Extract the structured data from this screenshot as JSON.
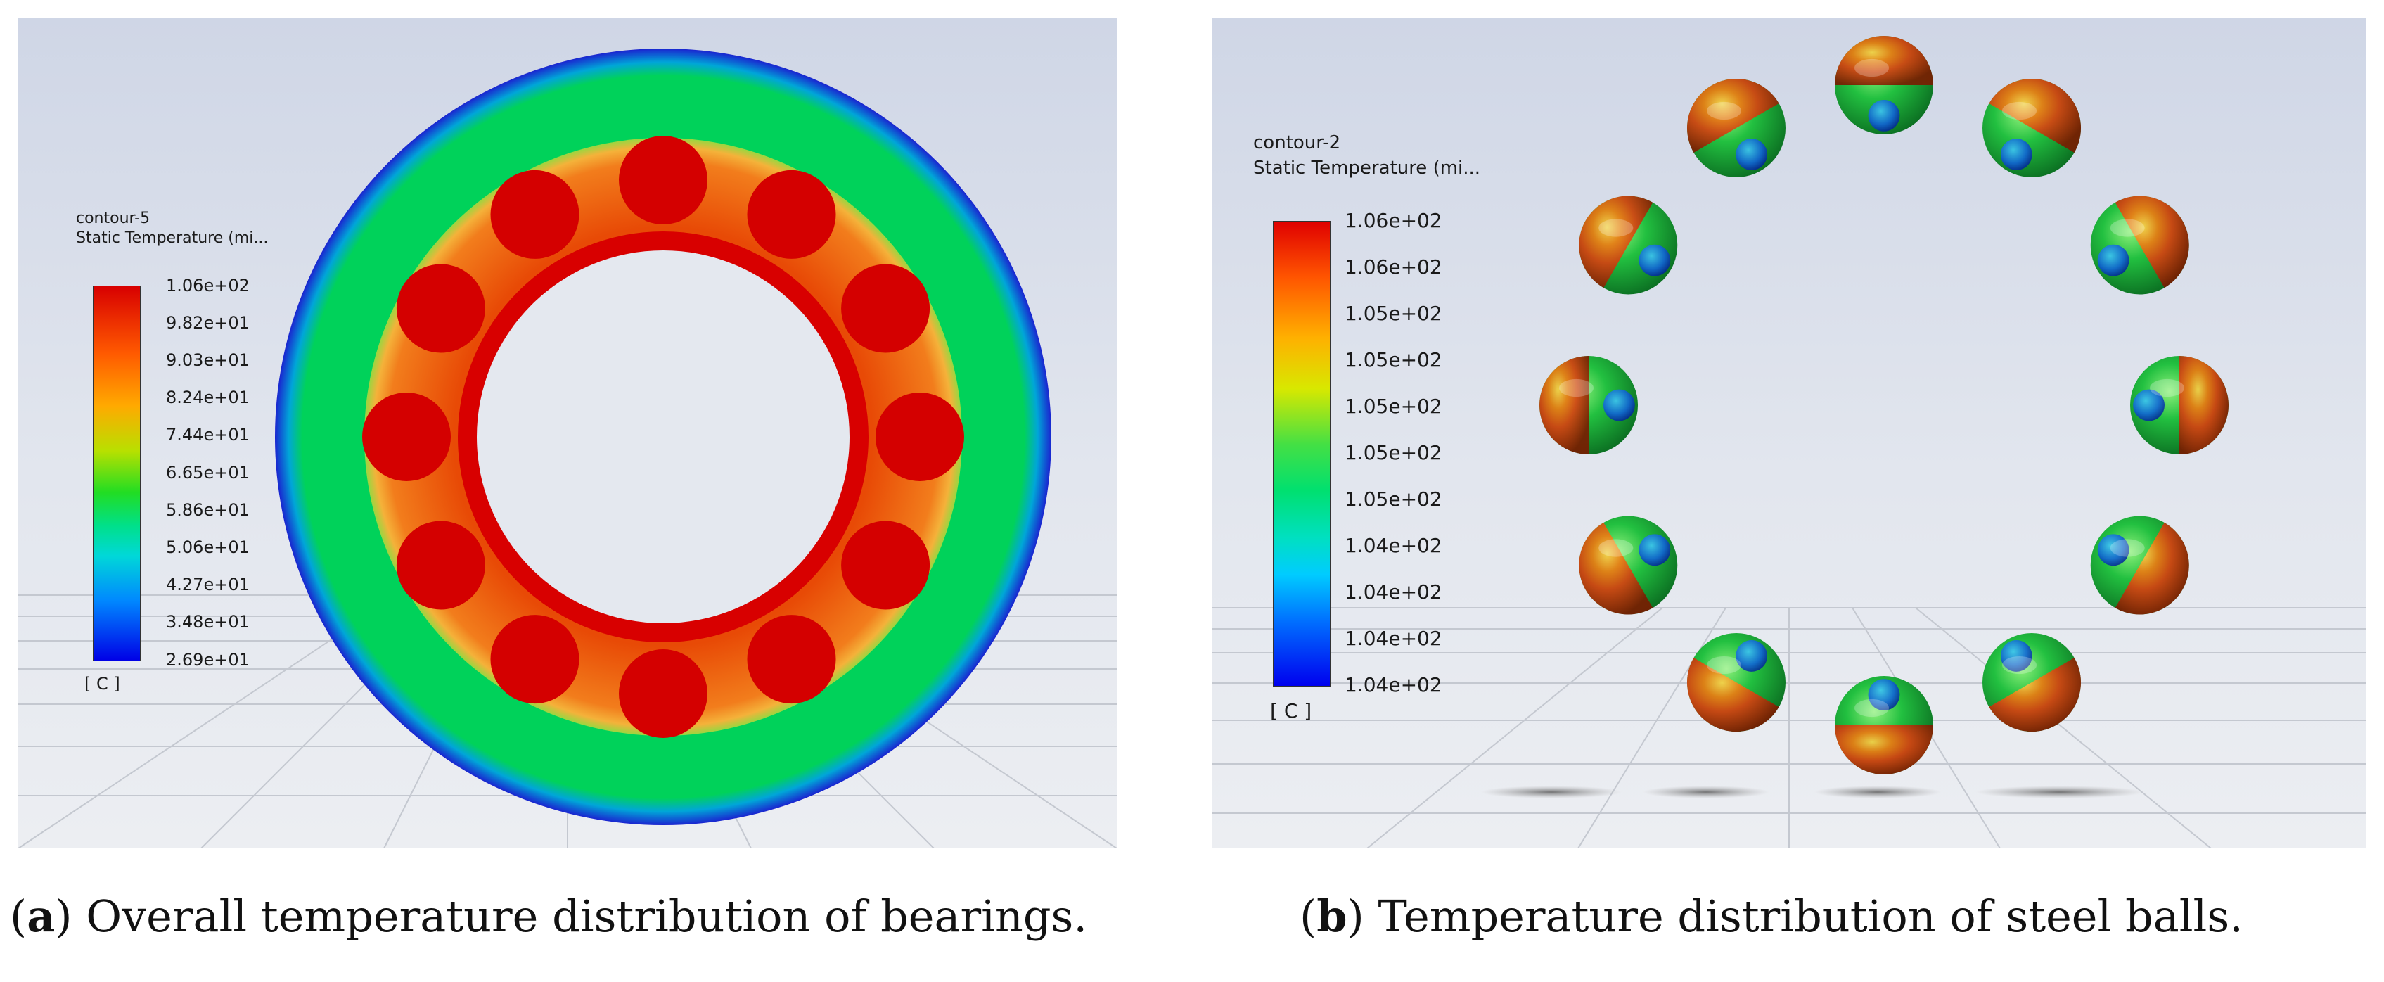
{
  "panel_a": {
    "legend": {
      "name": "contour-5",
      "variable": "Static Temperature (mi...",
      "ticks": [
        "1.06e+02",
        "9.82e+01",
        "9.03e+01",
        "8.24e+01",
        "7.44e+01",
        "6.65e+01",
        "5.86e+01",
        "5.06e+01",
        "4.27e+01",
        "3.48e+01",
        "2.69e+01"
      ],
      "unit": "[ C ]"
    },
    "caption": {
      "label": "a",
      "text": "Overall temperature distribution of bearings."
    },
    "colors": {
      "outer_ring": "#00d25a",
      "inner_ring": "#d80000",
      "cage": "#f05a10",
      "edge": "#1a2ad0"
    }
  },
  "panel_b": {
    "legend": {
      "name": "contour-2",
      "variable": "Static Temperature (mi...",
      "ticks": [
        "1.06e+02",
        "1.06e+02",
        "1.05e+02",
        "1.05e+02",
        "1.05e+02",
        "1.05e+02",
        "1.05e+02",
        "1.04e+02",
        "1.04e+02",
        "1.04e+02",
        "1.04e+02"
      ],
      "unit": "[ C ]"
    },
    "caption": {
      "label": "b",
      "text": "Temperature distribution of steel balls."
    },
    "ball_count": 12
  }
}
